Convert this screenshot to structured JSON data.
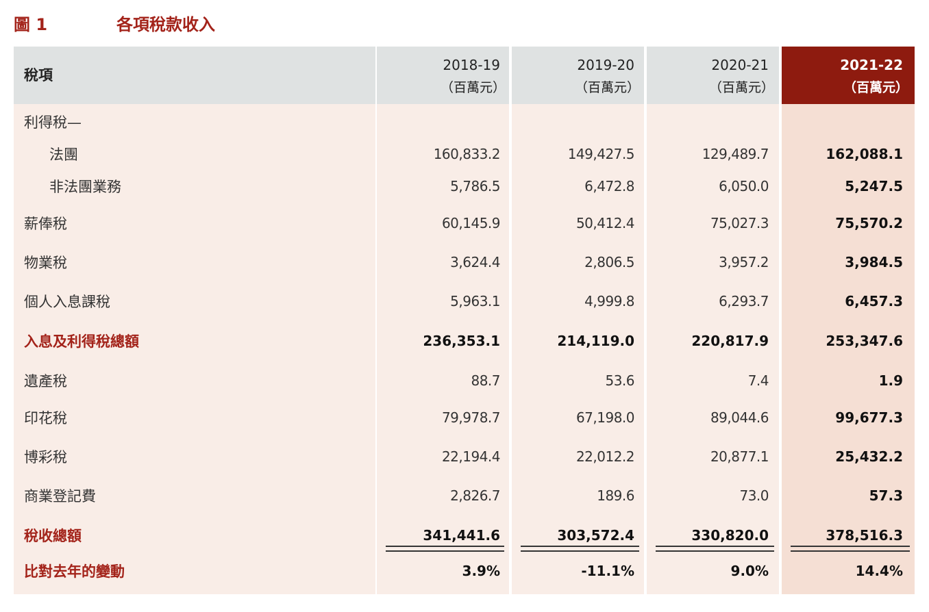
{
  "header": {
    "figure": "圖 1",
    "title": "各項稅款收入"
  },
  "table": {
    "label_header": "稅項",
    "columns": [
      {
        "year": "2018-19",
        "unit": "（百萬元）"
      },
      {
        "year": "2019-20",
        "unit": "（百萬元）"
      },
      {
        "year": "2020-21",
        "unit": "（百萬元）"
      },
      {
        "year": "2021-22",
        "unit": "（百萬元）"
      }
    ],
    "rows": [
      [
        "利得稅—"
      ],
      [
        "法團",
        "160,833.2",
        "149,427.5",
        "129,489.7",
        "162,088.1"
      ],
      [
        "非法團業務",
        "5,786.5",
        "6,472.8",
        "6,050.0",
        "5,247.5"
      ],
      [
        "薪俸稅",
        "60,145.9",
        "50,412.4",
        "75,027.3",
        "75,570.2"
      ],
      [
        "物業稅",
        "3,624.4",
        "2,806.5",
        "3,957.2",
        "3,984.5"
      ],
      [
        "個人入息課稅",
        "5,963.1",
        "4,999.8",
        "6,293.7",
        "6,457.3"
      ],
      [
        "入息及利得稅總額",
        "236,353.1",
        "214,119.0",
        "220,817.9",
        "253,347.6"
      ],
      [
        "遺產稅",
        "88.7",
        "53.6",
        "7.4",
        "1.9"
      ],
      [
        "印花稅",
        "79,978.7",
        "67,198.0",
        "89,044.6",
        "99,677.3"
      ],
      [
        "博彩稅",
        "22,194.4",
        "22,012.2",
        "20,877.1",
        "25,432.2"
      ],
      [
        "商業登記費",
        "2,826.7",
        "189.6",
        "73.0",
        "57.3"
      ],
      [
        "稅收總額",
        "341,441.6",
        "303,572.4",
        "330,820.0",
        "378,516.3"
      ],
      [
        "比對去年的變動",
        "3.9%",
        "-11.1%",
        "9.0%",
        "14.4%"
      ]
    ]
  }
}
